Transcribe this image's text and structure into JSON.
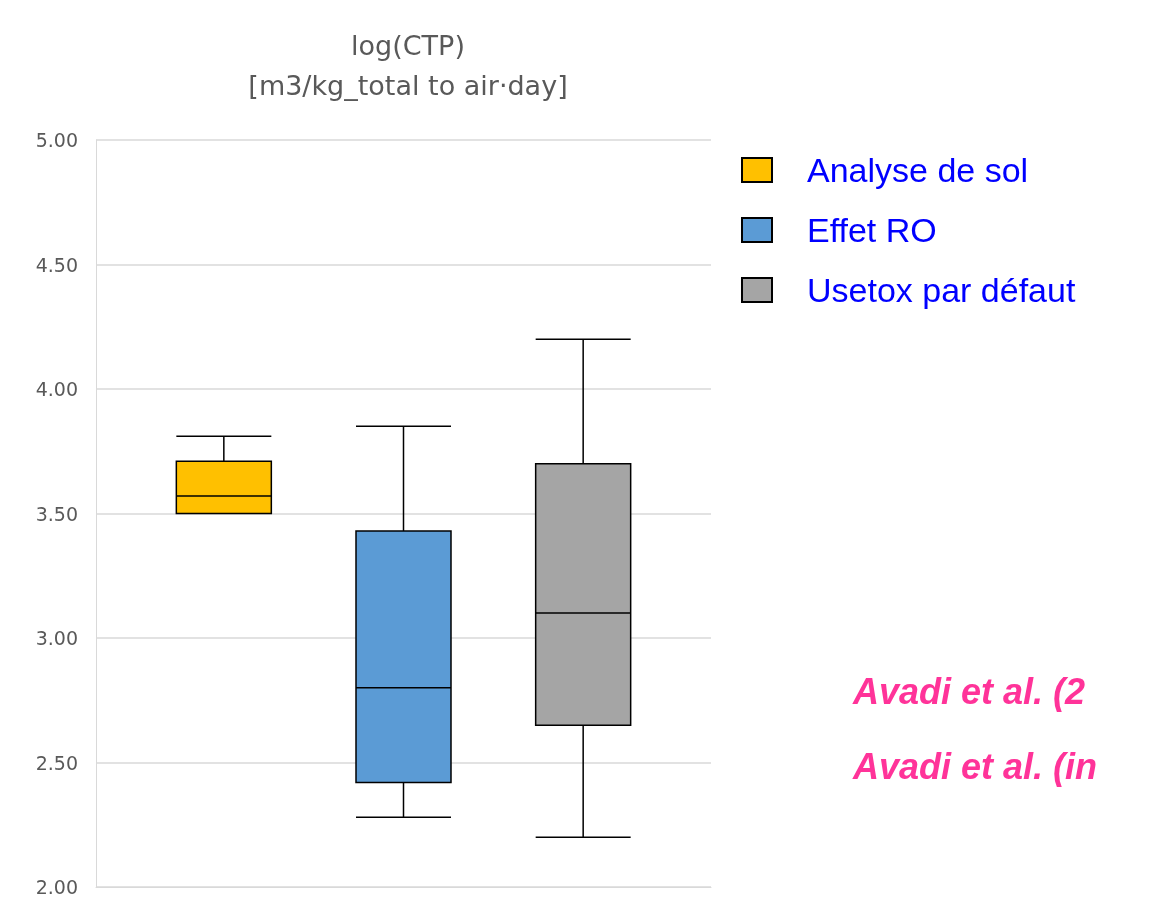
{
  "chart_data": {
    "type": "box",
    "title": "log(CTP)\n[m3/kg_total to air·day]",
    "categories": [
      null
    ],
    "series": [
      {
        "name": "Analyse de sol",
        "color": "#ffc000",
        "boxes": [
          {
            "low": 3.5,
            "q1": 3.5,
            "median": 3.57,
            "q3": 3.71,
            "high": 3.81
          }
        ]
      },
      {
        "name": "Effet RO",
        "color": "#5b9bd5",
        "boxes": [
          {
            "low": 2.28,
            "q1": 2.42,
            "median": 2.8,
            "q3": 3.43,
            "high": 3.85
          }
        ]
      },
      {
        "name": "Usetox par défaut",
        "color": "#a5a5a5",
        "boxes": [
          {
            "low": 2.2,
            "q1": 2.65,
            "median": 3.1,
            "q3": 3.7,
            "high": 4.2
          }
        ]
      }
    ],
    "ylim": [
      2,
      5
    ],
    "yticks": [
      {
        "value": 2,
        "label": "2.00"
      },
      {
        "value": 2.5,
        "label": "2.50"
      },
      {
        "value": 3,
        "label": "3.00"
      },
      {
        "value": 3.5,
        "label": "3.50"
      },
      {
        "value": 4,
        "label": "4.00"
      },
      {
        "value": 4.5,
        "label": "4.50"
      },
      {
        "value": 5,
        "label": "5.00"
      }
    ],
    "grid": "y",
    "legend": "right",
    "tick_labels": "y",
    "annotations": [
      "Avadi et al. (2",
      "Avadi et al. (in"
    ]
  }
}
